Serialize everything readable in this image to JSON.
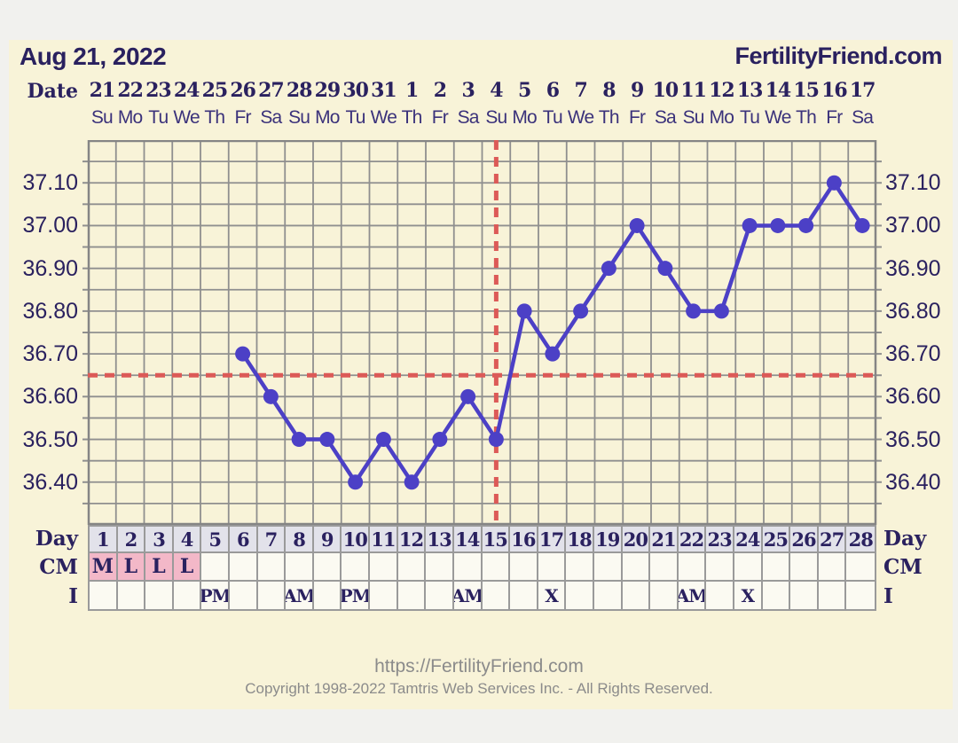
{
  "header": {
    "date": "Aug 21, 2022",
    "brand": "FertilityFriend.com"
  },
  "axis_labels": {
    "date": "Date",
    "day": "Day",
    "cm": "CM",
    "intercourse": "I"
  },
  "date_axis": {
    "dates": [
      "21",
      "22",
      "23",
      "24",
      "25",
      "26",
      "27",
      "28",
      "29",
      "30",
      "31",
      "1",
      "2",
      "3",
      "4",
      "5",
      "6",
      "7",
      "8",
      "9",
      "10",
      "11",
      "12",
      "13",
      "14",
      "15",
      "16",
      "17"
    ],
    "weekdays": [
      "Su",
      "Mo",
      "Tu",
      "We",
      "Th",
      "Fr",
      "Sa",
      "Su",
      "Mo",
      "Tu",
      "We",
      "Th",
      "Fr",
      "Sa",
      "Su",
      "Mo",
      "Tu",
      "We",
      "Th",
      "Fr",
      "Sa",
      "Su",
      "Mo",
      "Tu",
      "We",
      "Th",
      "Fr",
      "Sa"
    ]
  },
  "chart_data": {
    "type": "line",
    "x": [
      1,
      2,
      3,
      4,
      5,
      6,
      7,
      8,
      9,
      10,
      11,
      12,
      13,
      14,
      15,
      16,
      17,
      18,
      19,
      20,
      21,
      22,
      23,
      24,
      25,
      26,
      27,
      28
    ],
    "series": [
      {
        "name": "temperature",
        "values": [
          null,
          null,
          null,
          null,
          null,
          36.7,
          36.6,
          36.5,
          36.5,
          36.4,
          36.5,
          36.4,
          36.5,
          36.6,
          36.5,
          36.8,
          36.7,
          36.8,
          36.9,
          37.0,
          36.9,
          36.8,
          36.8,
          37.0,
          37.0,
          37.0,
          37.1,
          37.0
        ]
      }
    ],
    "ylim": [
      36.3,
      37.2
    ],
    "ytick_step": 0.05,
    "ytick_labels": [
      "36.40",
      "36.50",
      "36.60",
      "36.70",
      "36.80",
      "36.90",
      "37.00",
      "37.10"
    ],
    "coverline": 36.65,
    "ovulation_day": 15,
    "grid": true
  },
  "table": {
    "day_values": [
      "1",
      "2",
      "3",
      "4",
      "5",
      "6",
      "7",
      "8",
      "9",
      "10",
      "11",
      "12",
      "13",
      "14",
      "15",
      "16",
      "17",
      "18",
      "19",
      "20",
      "21",
      "22",
      "23",
      "24",
      "25",
      "26",
      "27",
      "28"
    ],
    "cm_values": [
      "M",
      "L",
      "L",
      "L",
      "",
      "",
      "",
      "",
      "",
      "",
      "",
      "",
      "",
      "",
      "",
      "",
      "",
      "",
      "",
      "",
      "",
      "",
      "",
      "",
      "",
      "",
      "",
      ""
    ],
    "cm_highlight_count": 4,
    "intercourse_values": [
      "",
      "",
      "",
      "",
      "PM",
      "",
      "",
      "AM",
      "",
      "PM",
      "",
      "",
      "",
      "AM",
      "",
      "",
      "X",
      "",
      "",
      "",
      "",
      "AM",
      "",
      "X",
      "",
      "",
      "",
      ""
    ]
  },
  "footer": {
    "url": "https://FertilityFriend.com",
    "copyright": "Copyright 1998-2022 Tamtris Web Services Inc. - All Rights Reserved."
  },
  "colors": {
    "background": "#f1f1ee",
    "panel": "#f8f3d8",
    "text_navy": "#2a215f",
    "weekday_text": "#3b327b",
    "grid": "#8f8f8f",
    "plot_border": "#858585",
    "line": "#4c40c6",
    "marker_red": "#dc5a57",
    "day_cell_bg": "#e2e2ea",
    "cell_bg": "#fbfaf2",
    "cm_highlight": "#f3b8c8",
    "footer_text": "#8b8b8b"
  }
}
